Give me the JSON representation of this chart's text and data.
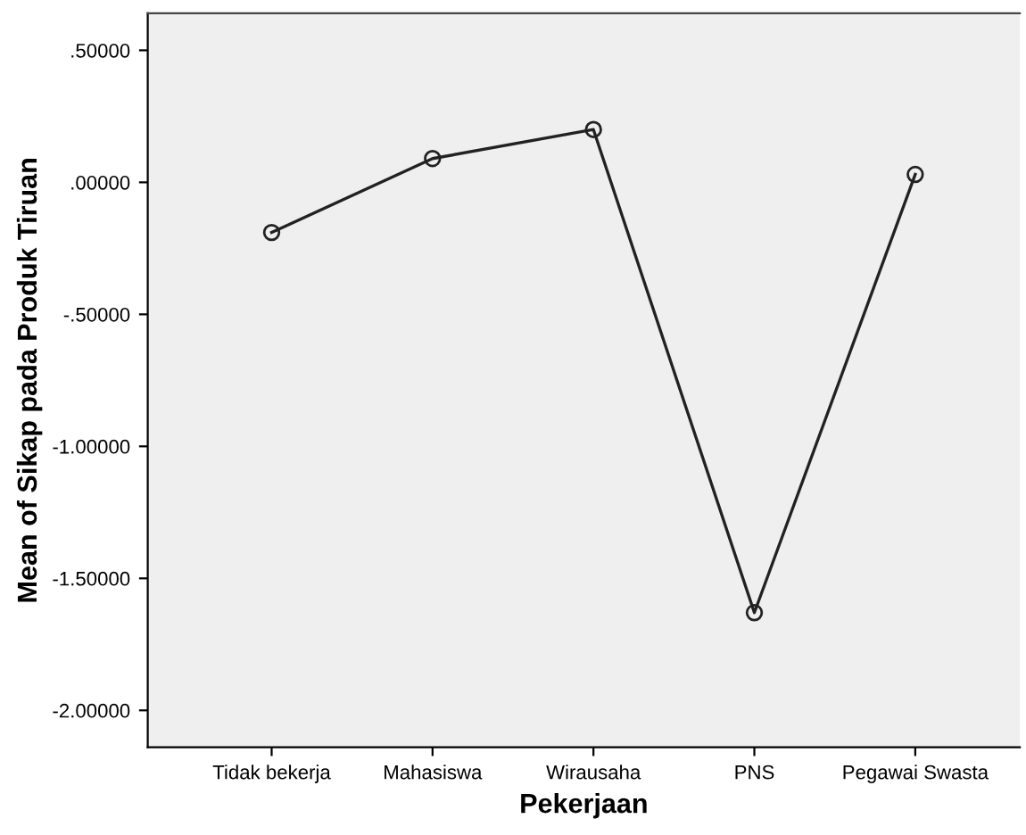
{
  "chart_data": {
    "type": "line",
    "xlabel": "Pekerjaan",
    "ylabel": "Mean of Sikap pada Produk Tiruan",
    "categories": [
      "Tidak bekerja",
      "Mahasiswa",
      "Wirausaha",
      "PNS",
      "Pegawai Swasta"
    ],
    "series": [
      {
        "color": "#222222",
        "values": [
          -0.19,
          0.09,
          0.2,
          -1.63,
          0.03
        ]
      }
    ],
    "ylim": [
      -2.14,
      0.64
    ],
    "yticks": [
      {
        "value": 0.5,
        "label": ".50000"
      },
      {
        "value": 0,
        "label": ".00000"
      },
      {
        "value": -0.5,
        "label": "-.50000"
      },
      {
        "value": -1,
        "label": "-1.00000"
      },
      {
        "value": -1.5,
        "label": "-1.50000"
      },
      {
        "value": -2,
        "label": "-2.00000"
      }
    ],
    "marker": "circle",
    "line_style": "solid",
    "grid": false,
    "legend": false
  }
}
